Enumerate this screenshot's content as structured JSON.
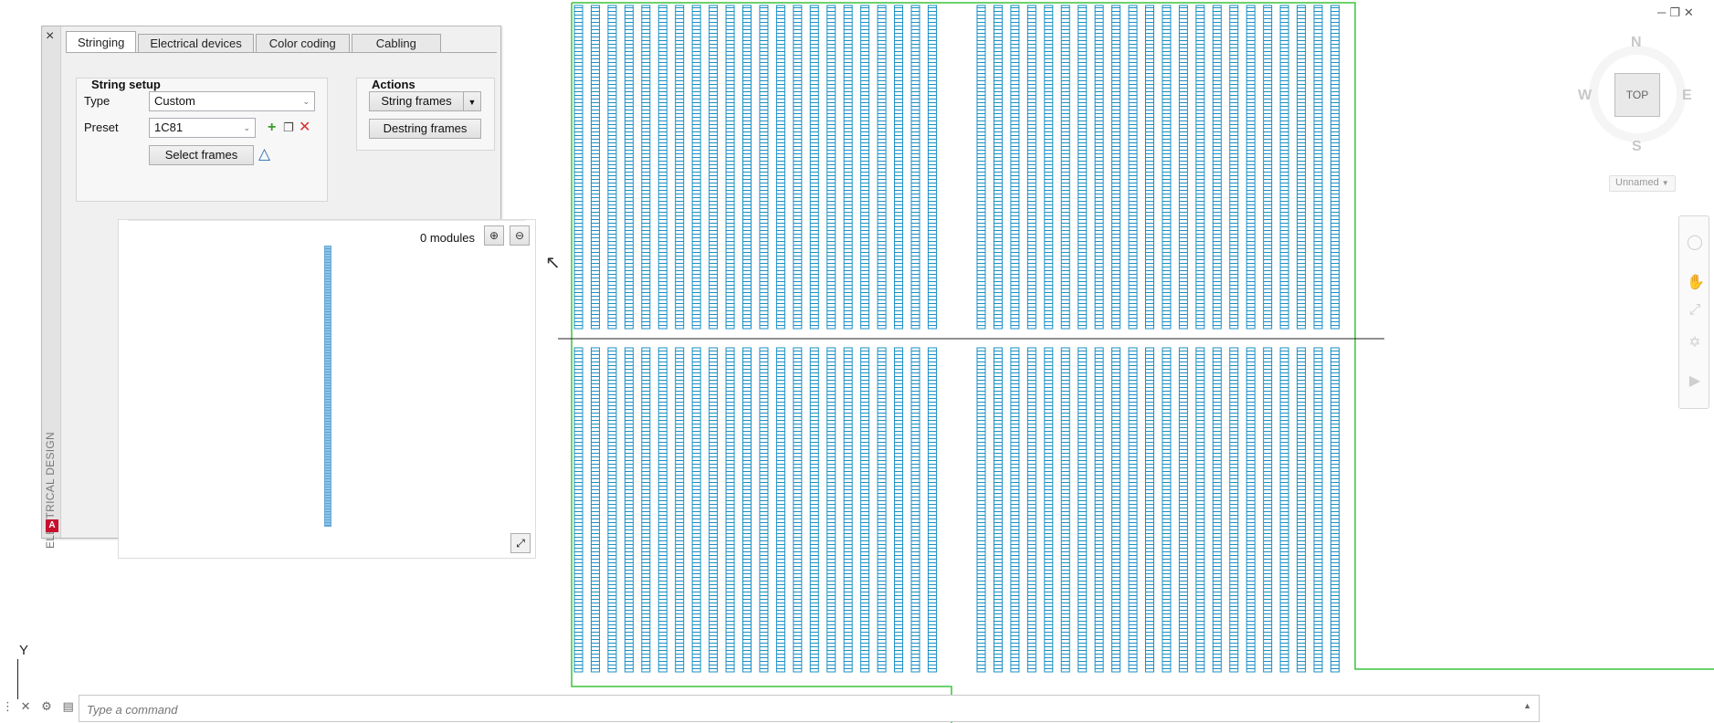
{
  "palette": {
    "vertical_title": "ELECTRICAL DESIGN",
    "close_glyph": "×",
    "tabs": [
      {
        "label": "Stringing",
        "active": true
      },
      {
        "label": "Electrical devices",
        "active": false
      },
      {
        "label": "Color coding",
        "active": false
      },
      {
        "label": "Cabling",
        "active": false
      }
    ],
    "string_setup": {
      "title": "String setup",
      "type_label": "Type",
      "type_value": "Custom",
      "preset_label": "Preset",
      "preset_value": "1C81",
      "select_frames_label": "Select frames",
      "icons": [
        "add-icon",
        "copy-icon",
        "delete-icon",
        "mirror-icon"
      ]
    },
    "actions": {
      "title": "Actions",
      "string_frames_label": "String frames",
      "destring_frames_label": "Destring frames"
    },
    "preview": {
      "modules_text": "0 modules",
      "zoom_in_icon": "zoom-in-icon",
      "zoom_out_icon": "zoom-out-icon",
      "expand_icon": "expand-icon"
    }
  },
  "viewcube": {
    "north": "N",
    "south": "S",
    "east": "E",
    "west": "W",
    "face": "TOP",
    "wcs": "Unnamed"
  },
  "ucs": {
    "y_label": "Y"
  },
  "command": {
    "placeholder": "Type a command"
  },
  "colors": {
    "frame_blue": "#1a8fc4",
    "boundary_green": "#3cc43c",
    "road_line": "#222222"
  }
}
